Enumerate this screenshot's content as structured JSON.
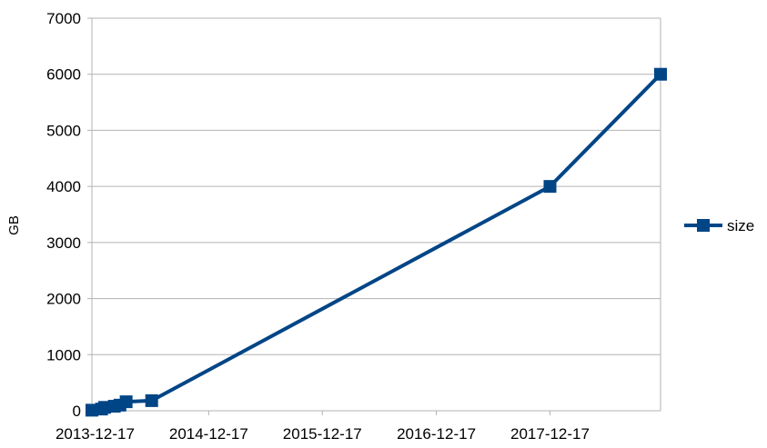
{
  "chart_data": {
    "type": "line",
    "title": "",
    "xlabel": "",
    "ylabel": "GB",
    "x_axis_type": "date",
    "xlim": [
      "2013-12-07",
      "2018-12-07"
    ],
    "ylim": [
      0,
      7000
    ],
    "y_ticks": [
      0,
      1000,
      2000,
      3000,
      4000,
      5000,
      6000,
      7000
    ],
    "y_tick_labels": [
      "0",
      "1000",
      "2000",
      "3000",
      "4000",
      "5000",
      "6000",
      "7000"
    ],
    "x_ticks": [
      "2013-12-17",
      "2014-12-17",
      "2015-12-17",
      "2016-12-17",
      "2017-12-17"
    ],
    "x_tick_labels": [
      "2013-12-17",
      "2014-12-17",
      "2015-12-17",
      "2016-12-17",
      "2017-12-17"
    ],
    "grid": true,
    "legend_position": "right",
    "series": [
      {
        "name": "size",
        "color": "#004586",
        "marker": "square",
        "x": [
          "2013-12-07",
          "2014-01-07",
          "2014-01-17",
          "2014-02-17",
          "2014-03-07",
          "2014-03-27",
          "2014-06-17",
          "2017-12-17",
          "2018-12-07"
        ],
        "y": [
          10,
          30,
          60,
          80,
          100,
          160,
          180,
          4000,
          6000
        ]
      }
    ]
  }
}
